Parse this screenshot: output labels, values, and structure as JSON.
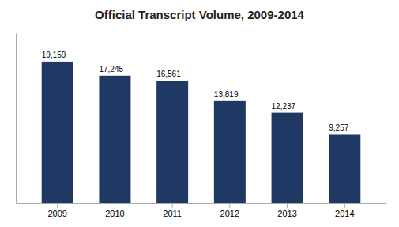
{
  "chart_data": {
    "type": "bar",
    "title": "Official Transcript Volume, 2009-2014",
    "categories": [
      "2009",
      "2010",
      "2011",
      "2012",
      "2013",
      "2014"
    ],
    "values": [
      19159,
      17245,
      16561,
      13819,
      12237,
      9257
    ],
    "value_labels": [
      "19,159",
      "17,245",
      "16,561",
      "13,819",
      "12,237",
      "9,257"
    ],
    "color": "#1F3864",
    "ylim": [
      0,
      23000
    ],
    "grid": false,
    "data_labels": true,
    "tick_labels": "x"
  }
}
